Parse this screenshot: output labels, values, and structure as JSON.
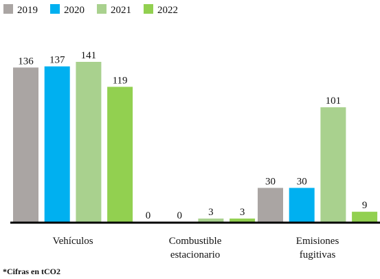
{
  "chart_data": {
    "type": "bar",
    "categories": [
      "Vehículos",
      "Combustible estacionario",
      "Emisiones fugitivas"
    ],
    "series": [
      {
        "name": "2019",
        "color": "#aaa5a3",
        "values": [
          136,
          0,
          30
        ]
      },
      {
        "name": "2020",
        "color": "#00b0f0",
        "values": [
          137,
          0,
          30
        ]
      },
      {
        "name": "2021",
        "color": "#a9d18e",
        "values": [
          141,
          3,
          101
        ]
      },
      {
        "name": "2022",
        "color": "#92d050",
        "values": [
          119,
          3,
          9
        ]
      }
    ],
    "legend": "top-left",
    "footnote": "*Cifras en tCO2"
  }
}
